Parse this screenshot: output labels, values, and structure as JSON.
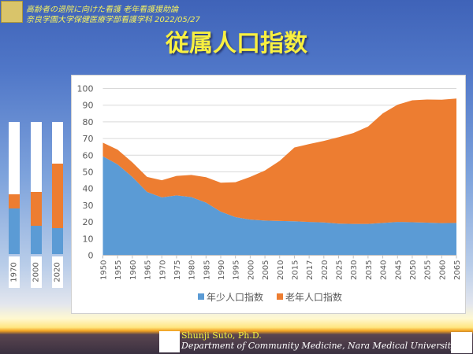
{
  "header": {
    "line1": "高齢者の退院に向けた看護 老年看護援助論",
    "line2": "奈良学園大学保健医療学部看護学科 2022/05/27"
  },
  "slide_title": "従属人口指数",
  "mini_bars": [
    {
      "label": "1970",
      "young": 34.7,
      "old": 10.3
    },
    {
      "label": "2000",
      "young": 21.4,
      "old": 25.6
    },
    {
      "label": "2020",
      "young": 19.7,
      "old": 48.9
    }
  ],
  "footer": {
    "author": "Shunji Suto, Ph.D.",
    "department": "Department of Community Medicine, Nara Medical University"
  },
  "chart_data": {
    "type": "area",
    "stacked": true,
    "categories": [
      "1950",
      "1955",
      "1960",
      "1965",
      "1970",
      "1975",
      "1980",
      "1985",
      "1990",
      "1995",
      "2000",
      "2005",
      "2010",
      "2015",
      "2017",
      "2020",
      "2025",
      "2030",
      "2035",
      "2040",
      "2045",
      "2050",
      "2055",
      "2060",
      "2065"
    ],
    "series": [
      {
        "name": "年少人口指数",
        "color": "#5b9bd5",
        "values": [
          59.4,
          54.5,
          47.0,
          38.0,
          34.7,
          35.9,
          34.9,
          31.6,
          26.2,
          22.9,
          21.4,
          20.8,
          20.6,
          20.4,
          20.0,
          19.7,
          19.0,
          18.8,
          18.8,
          19.4,
          20.0,
          19.8,
          19.6,
          19.3,
          19.4
        ]
      },
      {
        "name": "老年人口指数",
        "color": "#ed7d31",
        "values": [
          8.1,
          8.8,
          8.7,
          9.0,
          10.3,
          11.7,
          13.3,
          15.2,
          17.3,
          20.9,
          25.6,
          30.0,
          36.0,
          44.2,
          46.7,
          48.9,
          51.8,
          54.5,
          58.4,
          65.7,
          70.3,
          73.1,
          73.8,
          74.0,
          74.6
        ]
      }
    ],
    "ylim": [
      0,
      100
    ],
    "yticks": [
      0,
      10,
      20,
      30,
      40,
      50,
      60,
      70,
      80,
      90,
      100
    ],
    "grid": true,
    "legend": "bottom"
  }
}
